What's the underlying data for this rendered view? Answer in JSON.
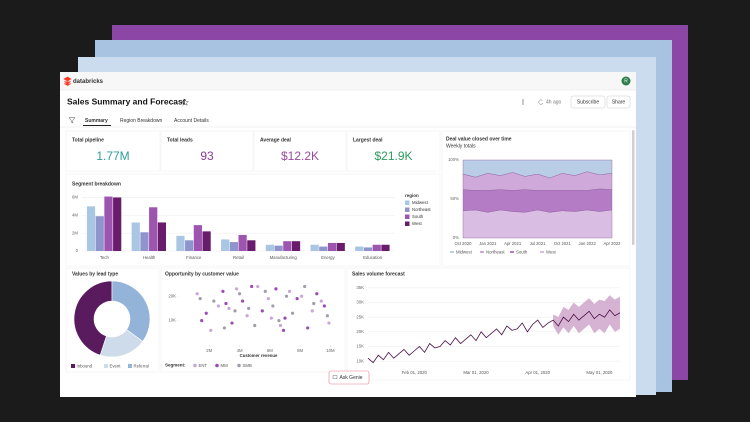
{
  "app": {
    "brand": "databricks",
    "avatar": "R"
  },
  "header": {
    "title": "Sales Summary and Forecast",
    "updated": "4h ago",
    "buttons": [
      "Subscribe",
      "Share"
    ]
  },
  "tabs": [
    "Summary",
    "Region Breakdown",
    "Account Details"
  ],
  "kpis": [
    {
      "label": "Total pipeline",
      "value": "1.77M",
      "color": "#2f9e9a"
    },
    {
      "label": "Total leads",
      "value": "93",
      "color": "#8a3a98"
    },
    {
      "label": "Average deal",
      "value": "$12.2K",
      "color": "#9a4a9c"
    },
    {
      "label": "Largest deal",
      "value": "$21.9K",
      "color": "#2e9b5e"
    }
  ],
  "genie": "Ask Genie",
  "chart_data": [
    {
      "type": "bar",
      "title": "Segment breakdown",
      "legend_title": "region",
      "legend": "right",
      "grid": true,
      "categories": [
        "Tech",
        "Health",
        "Finance",
        "Retail",
        "Manufacturing",
        "Energy",
        "Education"
      ],
      "series": [
        {
          "name": "Midwest",
          "color": "#a9c6e3",
          "values": [
            5000000,
            3200000,
            1700000,
            1300000,
            700000,
            700000,
            500000
          ]
        },
        {
          "name": "Northeast",
          "color": "#8f95cc",
          "values": [
            3900000,
            2100000,
            1200000,
            1000000,
            600000,
            500000,
            400000
          ]
        },
        {
          "name": "South",
          "color": "#9d55b0",
          "values": [
            6100000,
            4900000,
            2900000,
            1800000,
            1100000,
            900000,
            700000
          ]
        },
        {
          "name": "West",
          "color": "#6a1c6c",
          "values": [
            6000000,
            3200000,
            2200000,
            1200000,
            1100000,
            900000,
            700000
          ]
        }
      ],
      "ylim": [
        0,
        6500000
      ],
      "yticks": [
        0,
        {
          "value": 2000000,
          "label": "2M"
        },
        {
          "value": 4000000,
          "label": "4M"
        },
        {
          "value": 6000000,
          "label": "6M"
        }
      ]
    },
    {
      "type": "area",
      "stacked": true,
      "title": "Deal value closed over time",
      "subtitle": "Weekly totals",
      "legend": "bottom",
      "categories": [
        "Oct 2020",
        null,
        "Jan 2021",
        null,
        "Apr 2021",
        null,
        "Jul 2021",
        null,
        "Oct 2021",
        null,
        "Jan 2022",
        null,
        "Apr 2022"
      ],
      "series": [
        {
          "name": "Midwest",
          "color": "#b9cde6",
          "values": [
            18,
            22,
            17,
            20,
            16,
            21,
            18,
            23,
            17,
            20,
            15,
            19,
            17
          ]
        },
        {
          "name": "Northeast",
          "color": "#cfa9d9",
          "values": [
            20,
            17,
            22,
            18,
            23,
            17,
            21,
            16,
            22,
            19,
            24,
            18,
            21
          ]
        },
        {
          "name": "South",
          "color": "#b47cc4",
          "values": [
            27,
            25,
            28,
            26,
            27,
            29,
            25,
            28,
            26,
            27,
            25,
            29,
            26
          ]
        },
        {
          "name": "West",
          "color": "#d9bde3",
          "values": [
            35,
            36,
            33,
            36,
            34,
            33,
            36,
            33,
            35,
            34,
            36,
            34,
            36
          ]
        }
      ],
      "ylim": [
        0,
        100
      ],
      "yticks": [
        {
          "value": 0,
          "label": "0%"
        },
        {
          "value": 50,
          "label": "50%"
        },
        {
          "value": 100,
          "label": "100%"
        }
      ]
    },
    {
      "type": "pie",
      "donut": true,
      "title": "Values by lead type",
      "legend": "bottom",
      "categories": [
        "Inbound",
        "Event",
        "Referral"
      ],
      "values": [
        45,
        20,
        35
      ],
      "colors": [
        "#5a1a5e",
        "#cddbeb",
        "#93b3d8"
      ]
    },
    {
      "type": "scatter",
      "title": "Opportunity by customer value",
      "xlabel": "Customer revenue",
      "legend_title": "Segment:",
      "legend": "bottom",
      "series": [
        {
          "name": "ENT",
          "color": "#c8a6d8",
          "x": [
            1200000,
            2600000,
            3800000,
            4500000,
            5900000,
            6700000,
            7300000,
            8800000,
            9400000,
            2100000,
            5200000,
            6100000,
            8100000,
            9900000,
            3300000
          ],
          "values": [
            21000,
            16000,
            23000,
            12000,
            19000,
            8000,
            22000,
            14000,
            18000,
            6000,
            24000,
            11000,
            20000,
            9000,
            15000
          ]
        },
        {
          "name": "MM",
          "color": "#9a4db2",
          "x": [
            1800000,
            2900000,
            3500000,
            4200000,
            5500000,
            6400000,
            7000000,
            7800000,
            8500000,
            9600000,
            4800000,
            6900000,
            3100000,
            1500000,
            9100000
          ],
          "values": [
            13000,
            22000,
            9000,
            18000,
            14000,
            23000,
            11000,
            19000,
            7000,
            16000,
            24000,
            6000,
            17000,
            10000,
            21000
          ]
        },
        {
          "name": "SMB",
          "color": "#a39cab",
          "x": [
            2300000,
            3700000,
            4000000,
            5000000,
            5700000,
            6200000,
            7500000,
            8300000,
            9800000,
            1400000,
            6600000,
            8900000,
            4600000,
            3000000,
            7100000
          ],
          "values": [
            18000,
            14000,
            21000,
            8000,
            22000,
            16000,
            13000,
            24000,
            12000,
            19000,
            10000,
            17000,
            15000,
            7000,
            20000
          ]
        }
      ],
      "xlim": [
        0,
        10500000
      ],
      "xticks": [
        {
          "value": 2000000,
          "label": "2M"
        },
        {
          "value": 4000000,
          "label": "4M"
        },
        {
          "value": 6000000,
          "label": "6M"
        },
        {
          "value": 8000000,
          "label": "8M"
        },
        {
          "value": 10000000,
          "label": "10M"
        }
      ],
      "ylim": [
        0,
        25000
      ],
      "yticks": [
        {
          "value": 10000,
          "label": "10K"
        },
        {
          "value": 20000,
          "label": "20K"
        }
      ]
    },
    {
      "type": "line",
      "title": "Sales volume forecast",
      "grid": true,
      "categories": [
        null,
        null,
        null,
        null,
        null,
        null,
        null,
        null,
        null,
        "Feb 01, 2020",
        null,
        null,
        null,
        null,
        null,
        null,
        null,
        null,
        null,
        null,
        null,
        "Mar 01, 2020",
        null,
        null,
        null,
        null,
        null,
        null,
        null,
        null,
        null,
        null,
        null,
        "Apr 01, 2020",
        null,
        null,
        null,
        null,
        null,
        null,
        null,
        null,
        null,
        null,
        null,
        "May 01, 2020",
        null,
        null,
        null,
        null
      ],
      "series": [
        {
          "color": "#4a0f45",
          "values": [
            11000,
            9500,
            12000,
            10500,
            13000,
            11000,
            12500,
            14000,
            12000,
            13500,
            15000,
            13000,
            16000,
            14500,
            15000,
            17000,
            15500,
            18000,
            16000,
            17500,
            19000,
            17000,
            20000,
            18000,
            19500,
            21000,
            19000,
            22000,
            20500,
            21000,
            23000,
            20000,
            22500,
            24000,
            21500,
            23000,
            24000,
            22000,
            25000,
            23500,
            26000,
            24000,
            25500,
            27000,
            24500,
            26000,
            25000,
            27500,
            25500,
            26500
          ]
        }
      ],
      "band": {
        "color": "#c99ac4",
        "upper": [
          null,
          null,
          null,
          null,
          null,
          null,
          null,
          null,
          null,
          null,
          null,
          null,
          null,
          null,
          null,
          null,
          null,
          null,
          null,
          null,
          null,
          null,
          null,
          null,
          null,
          null,
          null,
          null,
          null,
          null,
          null,
          null,
          null,
          null,
          null,
          null,
          26000,
          25000,
          28500,
          27500,
          30000,
          28500,
          30000,
          31500,
          29500,
          31000,
          30500,
          32500,
          31000,
          32000
        ],
        "lower": [
          null,
          null,
          null,
          null,
          null,
          null,
          null,
          null,
          null,
          null,
          null,
          null,
          null,
          null,
          null,
          null,
          null,
          null,
          null,
          null,
          null,
          null,
          null,
          null,
          null,
          null,
          null,
          null,
          null,
          null,
          null,
          null,
          null,
          null,
          null,
          null,
          22000,
          19000,
          21500,
          19500,
          22000,
          19500,
          21000,
          22500,
          19500,
          21000,
          19500,
          22500,
          20000,
          21000
        ]
      },
      "ylim": [
        8000,
        37000
      ],
      "yticks": [
        {
          "value": 10000,
          "label": "10K"
        },
        {
          "value": 15000,
          "label": "15K"
        },
        {
          "value": 20000,
          "label": "20K"
        },
        {
          "value": 25000,
          "label": "25K"
        },
        {
          "value": 30000,
          "label": "30K"
        },
        {
          "value": 35000,
          "label": "35K"
        }
      ]
    }
  ]
}
